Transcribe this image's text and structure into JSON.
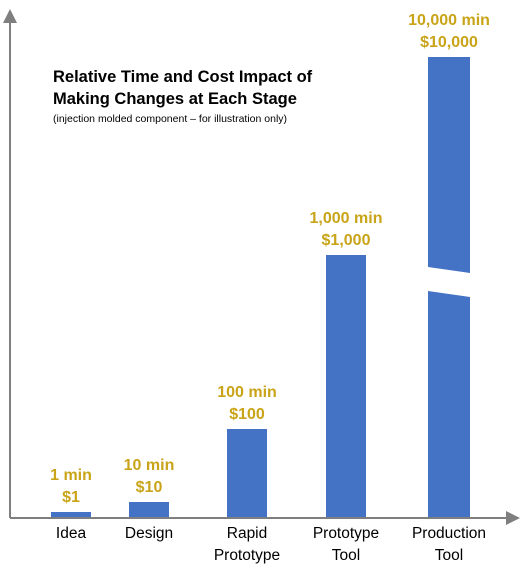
{
  "chart_data": {
    "type": "bar",
    "title_lines": [
      "Relative Time and Cost Impact of",
      "Making Changes at Each Stage"
    ],
    "subtitle": "(injection molded component – for illustration only)",
    "categories": [
      {
        "lines": [
          "Idea"
        ]
      },
      {
        "lines": [
          "Design"
        ]
      },
      {
        "lines": [
          "Rapid",
          "Prototype"
        ]
      },
      {
        "lines": [
          "Prototype",
          "Tool"
        ]
      },
      {
        "lines": [
          "Production",
          "Tool"
        ]
      }
    ],
    "values": [
      1,
      10,
      100,
      1000,
      10000
    ],
    "time_labels": [
      "1 min",
      "10 min",
      "100 min",
      "1,000 min",
      "10,000 min"
    ],
    "cost_labels": [
      "$1",
      "$10",
      "$100",
      "$1,000",
      "$10,000"
    ],
    "axis_break_on_last": true,
    "colors": {
      "bar": "#4472c4",
      "label": "#c9a418",
      "axis": "#7f7f7f"
    },
    "grid": false
  }
}
